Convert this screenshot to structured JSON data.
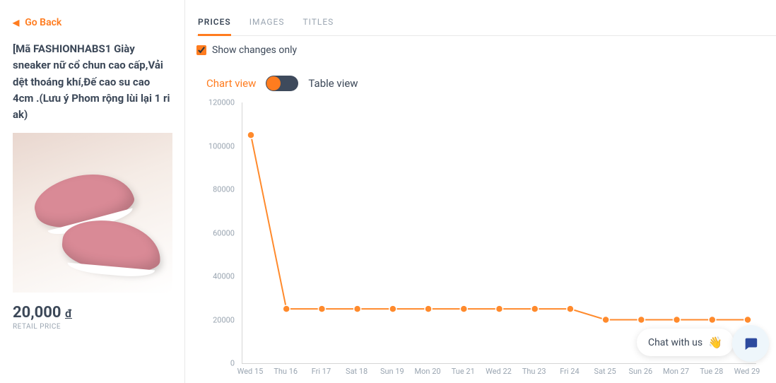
{
  "sidebar": {
    "go_back_label": "Go Back",
    "product_title": "[Mã FASHIONHABS1 Giày sneaker nữ cổ chun cao cấp,Vải dệt thoáng khí,Đế cao su cao 4cm .(Lưu ý Phom rộng lùi lại 1 ri ak)",
    "price_value": "20,000",
    "price_currency": "đ",
    "retail_price_label": "RETAIL PRICE"
  },
  "tabs": {
    "items": [
      {
        "label": "PRICES",
        "active": true
      },
      {
        "label": "IMAGES",
        "active": false
      },
      {
        "label": "TITLES",
        "active": false
      }
    ]
  },
  "show_changes": {
    "label": "Show changes only",
    "checked": true
  },
  "view_toggle": {
    "chart_label": "Chart view",
    "table_label": "Table view",
    "state": "chart"
  },
  "chart": {
    "type": "line",
    "background_color": "#ffffff",
    "line_color": "#ff8a2c",
    "marker_color": "#ff8a2c",
    "marker_border": "#ffffff",
    "marker_radius": 5,
    "line_width": 2,
    "axis_color": "#d6d6d6",
    "tick_color": "#9aa5b1",
    "tick_fontsize": 11,
    "ylim": [
      0,
      120000
    ],
    "ytick_step": 20000,
    "y_ticks": [
      0,
      20000,
      40000,
      60000,
      80000,
      100000,
      120000
    ],
    "x_labels": [
      "Wed 15",
      "Thu 16",
      "Fri 17",
      "Sat 18",
      "Sun 19",
      "Mon 20",
      "Tue 21",
      "Wed 22",
      "Thu 23",
      "Fri 24",
      "Sat 25",
      "Sun 26",
      "Mon 27",
      "Tue 28",
      "Wed 29"
    ],
    "values": [
      105000,
      25000,
      25000,
      25000,
      25000,
      25000,
      25000,
      25000,
      25000,
      25000,
      20000,
      20000,
      20000,
      20000,
      20000
    ]
  },
  "chat": {
    "pill_label": "Chat with us",
    "wave_emoji": "👋"
  }
}
